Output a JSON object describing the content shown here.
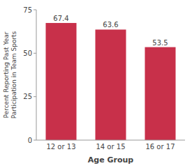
{
  "chart_data": {
    "type": "bar",
    "categories": [
      "12 or 13",
      "14 or 15",
      "16 or 17"
    ],
    "values": [
      67.4,
      63.6,
      53.5
    ],
    "color": "#c8304a",
    "xlabel": "Age Group",
    "ylabel": "Percent Reporting Past Year\nParticipation in Team Sports",
    "ylim": [
      0,
      75
    ],
    "yticks": [
      0,
      25,
      50,
      75
    ],
    "grid": false,
    "data_labels": true
  }
}
